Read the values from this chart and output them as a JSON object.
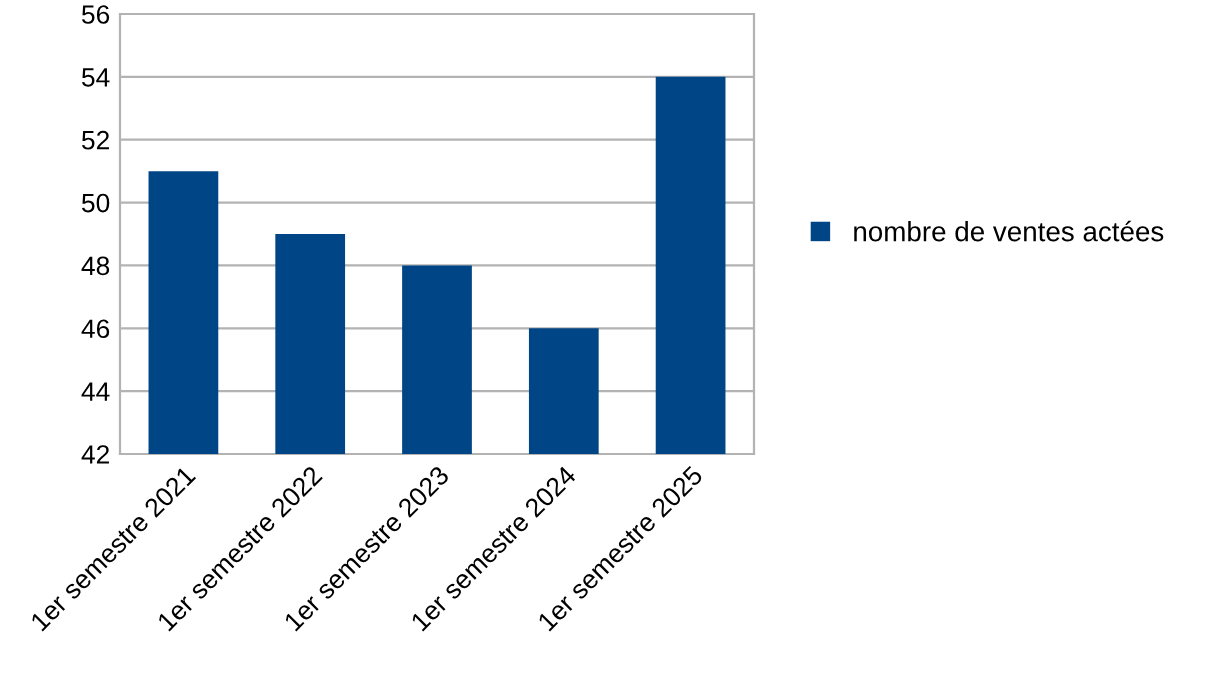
{
  "chart_data": {
    "type": "bar",
    "categories": [
      "1er semestre 2021",
      "1er semestre 2022",
      "1er semestre 2023",
      "1er semestre 2024",
      "1er semestre 2025"
    ],
    "series": [
      {
        "name": "nombre de ventes actées",
        "color": "#004586",
        "values": [
          51,
          49,
          48,
          46,
          54
        ]
      }
    ],
    "ylim": [
      42,
      56
    ],
    "yticks": [
      42,
      44,
      46,
      48,
      50,
      52,
      54,
      56
    ],
    "grid": "y",
    "legend": "right"
  }
}
